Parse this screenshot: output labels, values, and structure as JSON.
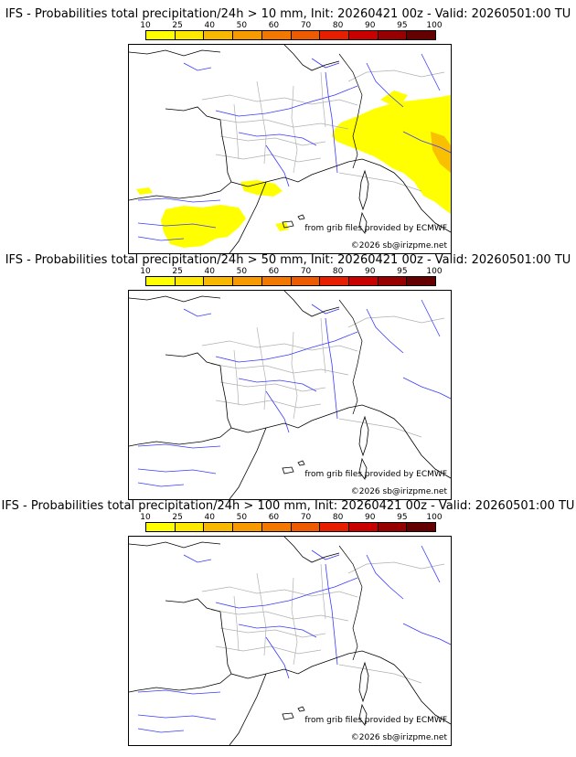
{
  "colors": {
    "scale": [
      "#ffff00",
      "#fde800",
      "#f9b800",
      "#f69a00",
      "#f27800",
      "#ee5a00",
      "#e81e00",
      "#c80000",
      "#960000",
      "#640000"
    ],
    "probability_fill": "#ffff00",
    "coast": "#000000",
    "rivers": "#3a3aff",
    "borders": "#b0b0b0"
  },
  "scale_labels": [
    "10",
    "25",
    "40",
    "50",
    "60",
    "70",
    "80",
    "90",
    "95",
    "100"
  ],
  "panels": [
    {
      "title": "IFS - Probabilities total precipitation/24h > 10 mm, Init: 20260421 00z - Valid: 20260501:00 TU",
      "credit_grib": "from grib files provided by ECMWF",
      "credit_copy": "©2026 sb@irizpme.net",
      "has_precip": true
    },
    {
      "title": "IFS - Probabilities total precipitation/24h > 50 mm, Init: 20260421 00z - Valid: 20260501:00 TU",
      "credit_grib": "from grib files provided by ECMWF",
      "credit_copy": "©2026 sb@irizpme.net",
      "has_precip": false
    },
    {
      "title": "IFS - Probabilities total precipitation/24h > 100 mm, Init: 20260421 00z - Valid: 20260501:00 TU",
      "credit_grib": "from grib files provided by ECMWF",
      "credit_copy": "©2026 sb@irizpme.net",
      "has_precip": false
    }
  ]
}
